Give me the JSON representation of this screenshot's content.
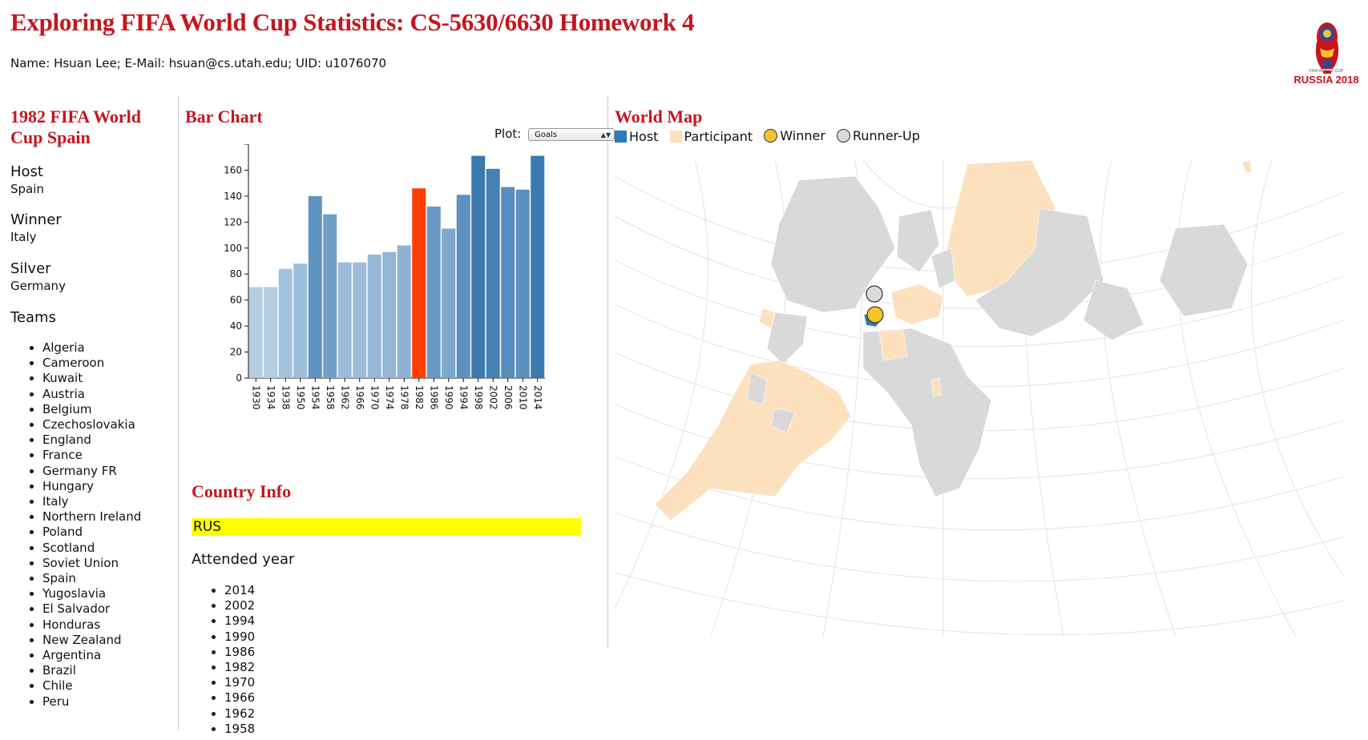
{
  "page": {
    "title": "Exploring FIFA World Cup Statistics: CS-5630/6630 Homework 4",
    "author_line": "Name: Hsuan Lee; E-Mail: hsuan@cs.utah.edu; UID: u1076070",
    "logo_small_text": "FIFA WORLD CUP",
    "logo_text": "RUSSIA 2018"
  },
  "tournament": {
    "title": "1982 FIFA World Cup Spain",
    "host_label": "Host",
    "host": "Spain",
    "winner_label": "Winner",
    "winner": "Italy",
    "silver_label": "Silver",
    "silver": "Germany",
    "teams_label": "Teams",
    "teams": [
      "Algeria",
      "Cameroon",
      "Kuwait",
      "Austria",
      "Belgium",
      "Czechoslovakia",
      "England",
      "France",
      "Germany FR",
      "Hungary",
      "Italy",
      "Northern Ireland",
      "Poland",
      "Scotland",
      "Soviet Union",
      "Spain",
      "Yugoslavia",
      "El Salvador",
      "Honduras",
      "New Zealand",
      "Argentina",
      "Brazil",
      "Chile",
      "Peru"
    ]
  },
  "bar_panel": {
    "title": "Bar Chart",
    "plot_label": "Plot:",
    "plot_selected": "Goals"
  },
  "chart_data": {
    "type": "bar",
    "title": "Bar Chart",
    "xlabel": "",
    "ylabel": "",
    "categories": [
      "1930",
      "1934",
      "1938",
      "1950",
      "1954",
      "1958",
      "1962",
      "1966",
      "1970",
      "1974",
      "1978",
      "1982",
      "1986",
      "1990",
      "1994",
      "1998",
      "2002",
      "2006",
      "2010",
      "2014"
    ],
    "values": [
      70,
      70,
      84,
      88,
      140,
      126,
      89,
      89,
      95,
      97,
      102,
      146,
      132,
      115,
      141,
      171,
      161,
      147,
      145,
      171
    ],
    "ylim": [
      0,
      180
    ],
    "yticks": [
      0,
      20,
      40,
      60,
      80,
      100,
      120,
      140,
      160
    ],
    "selected_category": "1982",
    "selected_color": "#ff3d00",
    "color_scale": [
      "#b3cde3",
      "#3a78b0"
    ],
    "grid": false
  },
  "country_info": {
    "title": "Country Info",
    "country": "RUS",
    "attended_label": "Attended year",
    "years": [
      "2014",
      "2002",
      "1994",
      "1990",
      "1986",
      "1982",
      "1970",
      "1966",
      "1962",
      "1958"
    ],
    "highlight_color": "#ffff00"
  },
  "world_map": {
    "title": "World Map",
    "legend": {
      "host": "Host",
      "participant": "Participant",
      "winner": "Winner",
      "runner_up": "Runner-Up"
    },
    "colors": {
      "host": "#2f7ab8",
      "participant": "#fde0bd",
      "winner": "#f5c32c",
      "runner_up": "#dadada",
      "land": "#d9d9d9",
      "graticule": "#e3e3e3"
    }
  }
}
